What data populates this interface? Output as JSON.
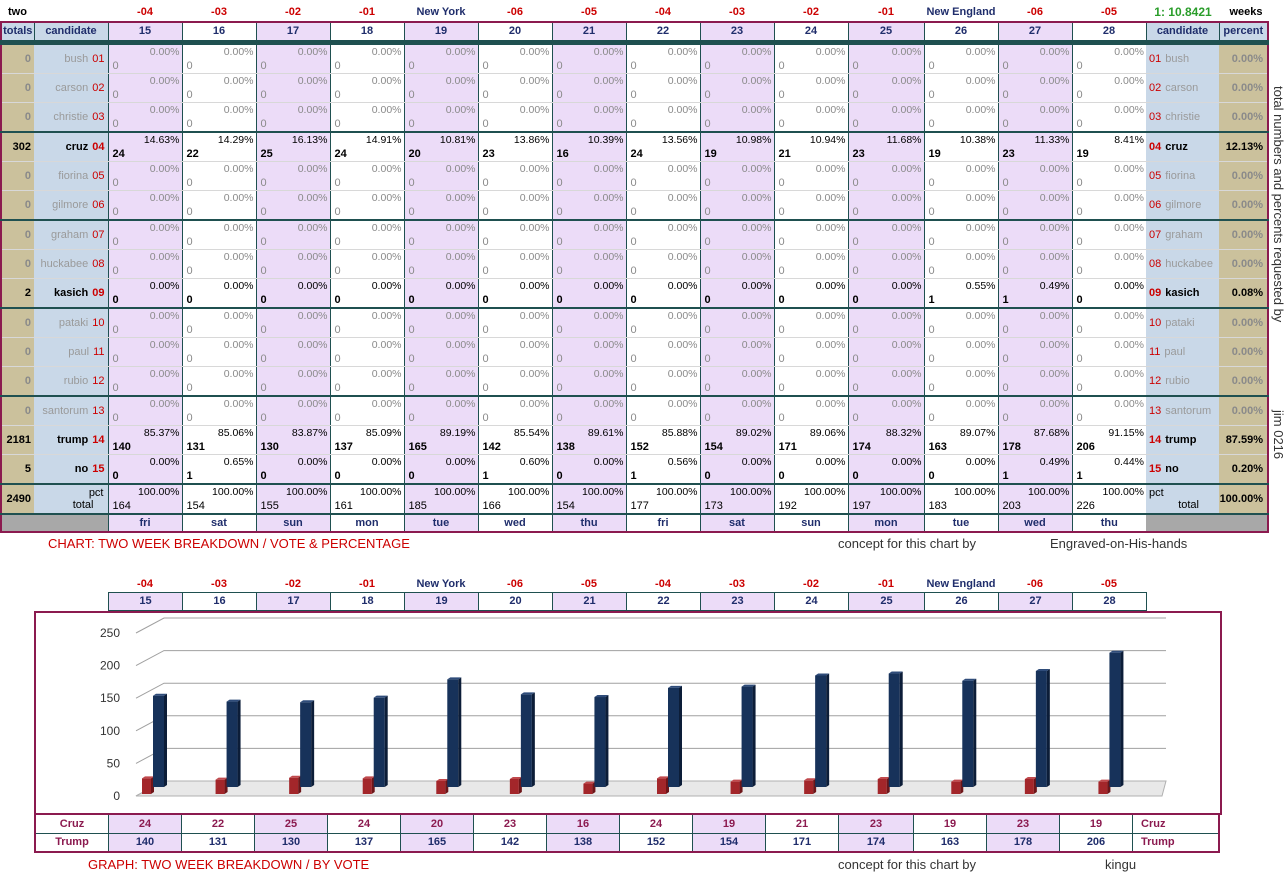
{
  "top": {
    "left_word": "two",
    "right_word": "weeks",
    "ratio": "1: 10.8421",
    "labels": [
      "-04",
      "-03",
      "-02",
      "-01",
      "New York",
      "-06",
      "-05",
      "-04",
      "-03",
      "-02",
      "-01",
      "New England",
      "-06",
      "-05"
    ]
  },
  "table": {
    "totals_header": "totals",
    "candidate_header": "candidate",
    "percent_header": "percent",
    "days": [
      "15",
      "16",
      "17",
      "18",
      "19",
      "20",
      "21",
      "22",
      "23",
      "24",
      "25",
      "26",
      "27",
      "28"
    ],
    "weekdays": [
      "fri",
      "sat",
      "sun",
      "mon",
      "tue",
      "wed",
      "thu",
      "fri",
      "sat",
      "sun",
      "mon",
      "tue",
      "wed",
      "thu"
    ],
    "rows": [
      {
        "idx": "01",
        "name": "bush",
        "total": "0",
        "percent": "0.00%",
        "counts": [
          "0",
          "0",
          "0",
          "0",
          "0",
          "0",
          "0",
          "0",
          "0",
          "0",
          "0",
          "0",
          "0",
          "0"
        ],
        "pcts": [
          "0.00%",
          "0.00%",
          "0.00%",
          "0.00%",
          "0.00%",
          "0.00%",
          "0.00%",
          "0.00%",
          "0.00%",
          "0.00%",
          "0.00%",
          "0.00%",
          "0.00%",
          "0.00%"
        ]
      },
      {
        "idx": "02",
        "name": "carson",
        "total": "0",
        "percent": "0.00%",
        "counts": [
          "0",
          "0",
          "0",
          "0",
          "0",
          "0",
          "0",
          "0",
          "0",
          "0",
          "0",
          "0",
          "0",
          "0"
        ],
        "pcts": [
          "0.00%",
          "0.00%",
          "0.00%",
          "0.00%",
          "0.00%",
          "0.00%",
          "0.00%",
          "0.00%",
          "0.00%",
          "0.00%",
          "0.00%",
          "0.00%",
          "0.00%",
          "0.00%"
        ]
      },
      {
        "idx": "03",
        "name": "christie",
        "total": "0",
        "percent": "0.00%",
        "counts": [
          "0",
          "0",
          "0",
          "0",
          "0",
          "0",
          "0",
          "0",
          "0",
          "0",
          "0",
          "0",
          "0",
          "0"
        ],
        "pcts": [
          "0.00%",
          "0.00%",
          "0.00%",
          "0.00%",
          "0.00%",
          "0.00%",
          "0.00%",
          "0.00%",
          "0.00%",
          "0.00%",
          "0.00%",
          "0.00%",
          "0.00%",
          "0.00%"
        ]
      },
      {
        "idx": "04",
        "name": "cruz",
        "total": "302",
        "percent": "12.13%",
        "bold": true,
        "counts": [
          "24",
          "22",
          "25",
          "24",
          "20",
          "23",
          "16",
          "24",
          "19",
          "21",
          "23",
          "19",
          "23",
          "19"
        ],
        "pcts": [
          "14.63%",
          "14.29%",
          "16.13%",
          "14.91%",
          "10.81%",
          "13.86%",
          "10.39%",
          "13.56%",
          "10.98%",
          "10.94%",
          "11.68%",
          "10.38%",
          "11.33%",
          "8.41%"
        ]
      },
      {
        "idx": "05",
        "name": "fiorina",
        "total": "0",
        "percent": "0.00%",
        "counts": [
          "0",
          "0",
          "0",
          "0",
          "0",
          "0",
          "0",
          "0",
          "0",
          "0",
          "0",
          "0",
          "0",
          "0"
        ],
        "pcts": [
          "0.00%",
          "0.00%",
          "0.00%",
          "0.00%",
          "0.00%",
          "0.00%",
          "0.00%",
          "0.00%",
          "0.00%",
          "0.00%",
          "0.00%",
          "0.00%",
          "0.00%",
          "0.00%"
        ]
      },
      {
        "idx": "06",
        "name": "gilmore",
        "total": "0",
        "percent": "0.00%",
        "counts": [
          "0",
          "0",
          "0",
          "0",
          "0",
          "0",
          "0",
          "0",
          "0",
          "0",
          "0",
          "0",
          "0",
          "0"
        ],
        "pcts": [
          "0.00%",
          "0.00%",
          "0.00%",
          "0.00%",
          "0.00%",
          "0.00%",
          "0.00%",
          "0.00%",
          "0.00%",
          "0.00%",
          "0.00%",
          "0.00%",
          "0.00%",
          "0.00%"
        ]
      },
      {
        "idx": "07",
        "name": "graham",
        "total": "0",
        "percent": "0.00%",
        "counts": [
          "0",
          "0",
          "0",
          "0",
          "0",
          "0",
          "0",
          "0",
          "0",
          "0",
          "0",
          "0",
          "0",
          "0"
        ],
        "pcts": [
          "0.00%",
          "0.00%",
          "0.00%",
          "0.00%",
          "0.00%",
          "0.00%",
          "0.00%",
          "0.00%",
          "0.00%",
          "0.00%",
          "0.00%",
          "0.00%",
          "0.00%",
          "0.00%"
        ]
      },
      {
        "idx": "08",
        "name": "huckabee",
        "total": "0",
        "percent": "0.00%",
        "counts": [
          "0",
          "0",
          "0",
          "0",
          "0",
          "0",
          "0",
          "0",
          "0",
          "0",
          "0",
          "0",
          "0",
          "0"
        ],
        "pcts": [
          "0.00%",
          "0.00%",
          "0.00%",
          "0.00%",
          "0.00%",
          "0.00%",
          "0.00%",
          "0.00%",
          "0.00%",
          "0.00%",
          "0.00%",
          "0.00%",
          "0.00%",
          "0.00%"
        ]
      },
      {
        "idx": "09",
        "name": "kasich",
        "total": "2",
        "percent": "0.08%",
        "bold": true,
        "counts": [
          "0",
          "0",
          "0",
          "0",
          "0",
          "0",
          "0",
          "0",
          "0",
          "0",
          "0",
          "1",
          "1",
          "0"
        ],
        "pcts": [
          "0.00%",
          "0.00%",
          "0.00%",
          "0.00%",
          "0.00%",
          "0.00%",
          "0.00%",
          "0.00%",
          "0.00%",
          "0.00%",
          "0.00%",
          "0.55%",
          "0.49%",
          "0.00%"
        ]
      },
      {
        "idx": "10",
        "name": "pataki",
        "total": "0",
        "percent": "0.00%",
        "counts": [
          "0",
          "0",
          "0",
          "0",
          "0",
          "0",
          "0",
          "0",
          "0",
          "0",
          "0",
          "0",
          "0",
          "0"
        ],
        "pcts": [
          "0.00%",
          "0.00%",
          "0.00%",
          "0.00%",
          "0.00%",
          "0.00%",
          "0.00%",
          "0.00%",
          "0.00%",
          "0.00%",
          "0.00%",
          "0.00%",
          "0.00%",
          "0.00%"
        ]
      },
      {
        "idx": "11",
        "name": "paul",
        "total": "0",
        "percent": "0.00%",
        "counts": [
          "0",
          "0",
          "0",
          "0",
          "0",
          "0",
          "0",
          "0",
          "0",
          "0",
          "0",
          "0",
          "0",
          "0"
        ],
        "pcts": [
          "0.00%",
          "0.00%",
          "0.00%",
          "0.00%",
          "0.00%",
          "0.00%",
          "0.00%",
          "0.00%",
          "0.00%",
          "0.00%",
          "0.00%",
          "0.00%",
          "0.00%",
          "0.00%"
        ]
      },
      {
        "idx": "12",
        "name": "rubio",
        "total": "0",
        "percent": "0.00%",
        "counts": [
          "0",
          "0",
          "0",
          "0",
          "0",
          "0",
          "0",
          "0",
          "0",
          "0",
          "0",
          "0",
          "0",
          "0"
        ],
        "pcts": [
          "0.00%",
          "0.00%",
          "0.00%",
          "0.00%",
          "0.00%",
          "0.00%",
          "0.00%",
          "0.00%",
          "0.00%",
          "0.00%",
          "0.00%",
          "0.00%",
          "0.00%",
          "0.00%"
        ]
      },
      {
        "idx": "13",
        "name": "santorum",
        "total": "0",
        "percent": "0.00%",
        "counts": [
          "0",
          "0",
          "0",
          "0",
          "0",
          "0",
          "0",
          "0",
          "0",
          "0",
          "0",
          "0",
          "0",
          "0"
        ],
        "pcts": [
          "0.00%",
          "0.00%",
          "0.00%",
          "0.00%",
          "0.00%",
          "0.00%",
          "0.00%",
          "0.00%",
          "0.00%",
          "0.00%",
          "0.00%",
          "0.00%",
          "0.00%",
          "0.00%"
        ]
      },
      {
        "idx": "14",
        "name": "trump",
        "total": "2181",
        "percent": "87.59%",
        "bold": true,
        "counts": [
          "140",
          "131",
          "130",
          "137",
          "165",
          "142",
          "138",
          "152",
          "154",
          "171",
          "174",
          "163",
          "178",
          "206"
        ],
        "pcts": [
          "85.37%",
          "85.06%",
          "83.87%",
          "85.09%",
          "89.19%",
          "85.54%",
          "89.61%",
          "85.88%",
          "89.02%",
          "89.06%",
          "88.32%",
          "89.07%",
          "87.68%",
          "91.15%"
        ]
      },
      {
        "idx": "15",
        "name": "no",
        "total": "5",
        "percent": "0.20%",
        "bold": true,
        "counts": [
          "0",
          "1",
          "0",
          "0",
          "0",
          "1",
          "0",
          "1",
          "0",
          "0",
          "0",
          "0",
          "1",
          "1"
        ],
        "pcts": [
          "0.00%",
          "0.65%",
          "0.00%",
          "0.00%",
          "0.00%",
          "0.60%",
          "0.00%",
          "0.56%",
          "0.00%",
          "0.00%",
          "0.00%",
          "0.00%",
          "0.49%",
          "0.44%"
        ]
      }
    ],
    "total_row": {
      "label": "total",
      "pct_label": "pct",
      "total": "2490",
      "percent": "100.00%",
      "counts": [
        "164",
        "154",
        "155",
        "161",
        "185",
        "166",
        "154",
        "177",
        "173",
        "192",
        "197",
        "183",
        "203",
        "226"
      ],
      "pct": "100.00%"
    }
  },
  "side_note": "total numbers and percents requested by",
  "side_note2": "jim 0216",
  "captions": {
    "chart_caption": "CHART: TWO WEEK BREAKDOWN / VOTE & PERCENTAGE",
    "concept1": "concept for this chart by",
    "author1": "Engraved-on-His-hands",
    "graph_caption": "GRAPH: TWO WEEK BREAKDOWN / BY VOTE",
    "concept2": "concept for this chart by",
    "author2": "kingu"
  },
  "chart_data": {
    "type": "bar",
    "categories": [
      "15",
      "16",
      "17",
      "18",
      "19",
      "20",
      "21",
      "22",
      "23",
      "24",
      "25",
      "26",
      "27",
      "28"
    ],
    "series": [
      {
        "name": "Cruz",
        "color": "#a3262a",
        "values": [
          24,
          22,
          25,
          24,
          20,
          23,
          16,
          24,
          19,
          21,
          23,
          19,
          23,
          19
        ]
      },
      {
        "name": "Trump",
        "color": "#17325a",
        "values": [
          140,
          131,
          130,
          137,
          165,
          142,
          138,
          152,
          154,
          171,
          174,
          163,
          178,
          206
        ]
      }
    ],
    "ylim": [
      0,
      250
    ],
    "yticks": [
      "0",
      "50",
      "100",
      "150",
      "200",
      "250"
    ],
    "grid": true,
    "legend": "table-below"
  }
}
